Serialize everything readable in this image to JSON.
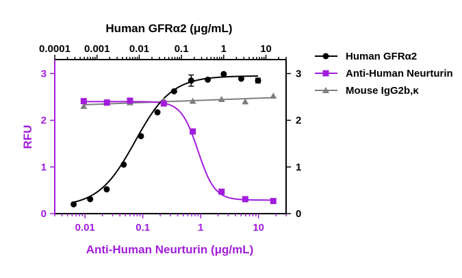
{
  "colors": {
    "black": "#000000",
    "purple": "#A21CDB",
    "gray": "#7F7F7F"
  },
  "chart_data": {
    "type": "scatter",
    "top_axis": {
      "title": "Human GFRα2 (μg/mL)",
      "scale": "log",
      "range": [
        0.0001,
        30
      ],
      "ticks": [
        0.0001,
        0.001,
        0.01,
        0.1,
        1,
        10
      ],
      "tick_labels": [
        "0.0001",
        "0.001",
        "0.01",
        "0.1",
        "1",
        "10"
      ]
    },
    "bottom_axis": {
      "title": "Anti-Human Neurturin (μg/mL)",
      "scale": "log",
      "range": [
        0.003,
        30
      ],
      "ticks": [
        0.01,
        0.1,
        1,
        10
      ],
      "tick_labels": [
        "0.01",
        "0.1",
        "1",
        "10"
      ]
    },
    "left_axis": {
      "title": "RFU",
      "range": [
        0,
        3.3
      ],
      "ticks": [
        0,
        1,
        2,
        3
      ],
      "tick_labels": [
        "0",
        "1",
        "2",
        "3"
      ]
    },
    "right_axis": {
      "range": [
        0,
        3.3
      ],
      "ticks": [
        0,
        1,
        2,
        3
      ],
      "tick_labels": [
        "0",
        "1",
        "2",
        "3"
      ]
    },
    "series": [
      {
        "name": "Human GFRα2",
        "x_axis": "top",
        "color": "#000000",
        "marker": "circle",
        "x": [
          0.00028,
          0.00069,
          0.0017,
          0.0043,
          0.011,
          0.027,
          0.067,
          0.17,
          0.42,
          1.0,
          2.6,
          6.5
        ],
        "y": [
          0.2,
          0.31,
          0.52,
          1.05,
          1.66,
          2.17,
          2.62,
          2.85,
          2.87,
          2.99,
          2.89,
          2.85
        ],
        "err": [
          0,
          0,
          0,
          0,
          0,
          0,
          0,
          0.12,
          0,
          0,
          0,
          0.05
        ],
        "fit": {
          "bottom": 0.15,
          "top": 2.95,
          "ec50": 0.008,
          "hill": 1.0
        }
      },
      {
        "name": "Anti-Human Neurturin",
        "x_axis": "bottom",
        "color": "#A21CDB",
        "marker": "square",
        "x": [
          0.0095,
          0.024,
          0.06,
          0.23,
          0.73,
          2.3,
          5.9,
          18
        ],
        "y": [
          2.41,
          2.38,
          2.42,
          2.36,
          1.76,
          0.47,
          0.31,
          0.27
        ],
        "fit": {
          "top": 2.4,
          "bottom": 0.29,
          "ic50": 0.9,
          "hill": 3.0
        }
      },
      {
        "name": "Mouse IgG2b,κ",
        "x_axis": "bottom",
        "color": "#7F7F7F",
        "marker": "triangle",
        "x": [
          0.0095,
          0.024,
          0.06,
          0.23,
          0.73,
          2.3,
          5.9,
          18
        ],
        "y": [
          2.3,
          2.37,
          2.38,
          2.43,
          2.41,
          2.45,
          2.4,
          2.52
        ],
        "fit": {
          "linear_log": true
        }
      }
    ],
    "legend": {
      "placement": "right"
    }
  }
}
